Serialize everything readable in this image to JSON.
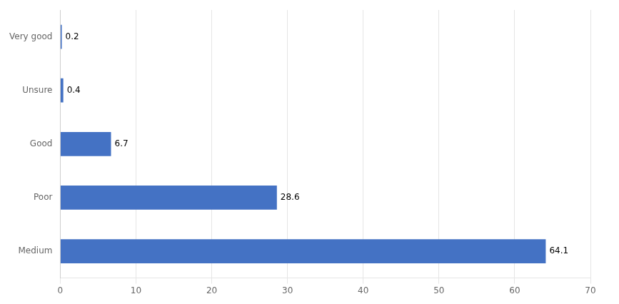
{
  "chart_data": {
    "type": "bar",
    "orientation": "horizontal",
    "categories": [
      "Medium",
      "Poor",
      "Good",
      "Unsure",
      "Very good"
    ],
    "values": [
      64.1,
      28.6,
      6.7,
      0.4,
      0.2
    ],
    "value_labels": [
      "64.1",
      "28.6",
      "6.7",
      "0.4",
      "0.2"
    ],
    "data_labels": true,
    "color": "#4472C4",
    "xlim": [
      0,
      70
    ],
    "xticks": [
      0,
      10,
      20,
      30,
      40,
      50,
      60,
      70
    ],
    "grid": true
  }
}
